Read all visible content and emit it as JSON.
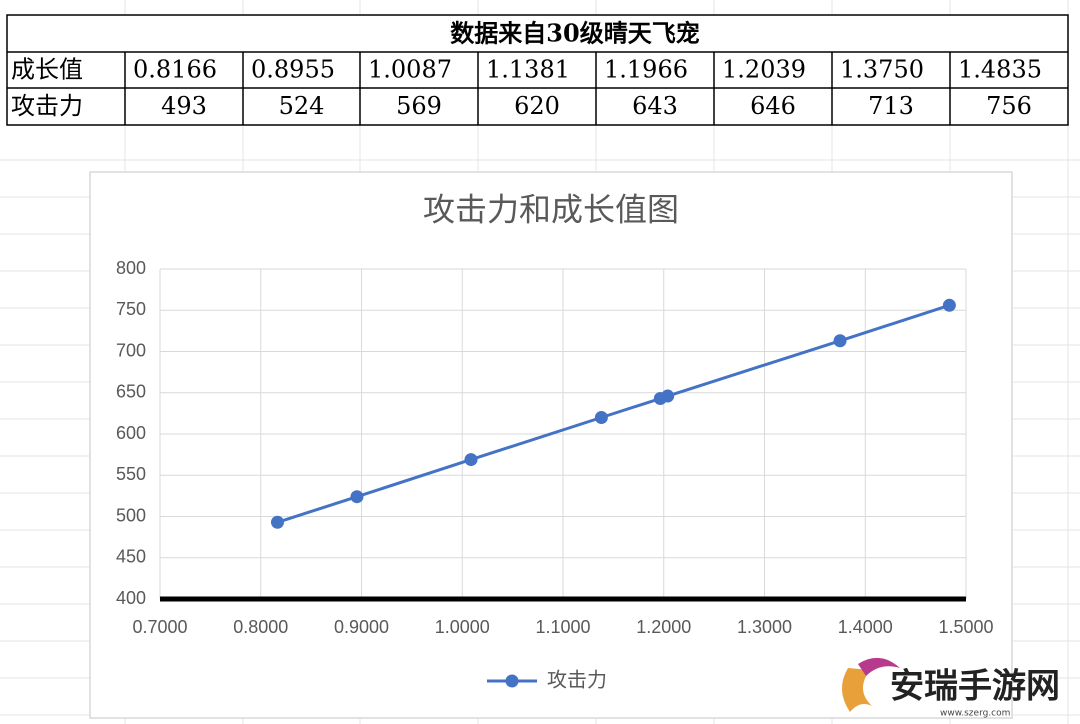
{
  "table": {
    "title": "数据来自30级晴天飞宠",
    "rows": [
      [
        "成长值",
        "0.8166",
        "0.8955",
        "1.0087",
        "1.1381",
        "1.1966",
        "1.2039",
        "1.3750",
        "1.4835"
      ],
      [
        "攻击力",
        "493",
        "524",
        "569",
        "620",
        "643",
        "646",
        "713",
        "756"
      ]
    ]
  },
  "chart_data": {
    "type": "line",
    "title": "攻击力和成长值图",
    "x": [
      0.8166,
      0.8955,
      1.0087,
      1.1381,
      1.1966,
      1.2039,
      1.375,
      1.4835
    ],
    "series": [
      {
        "name": "攻击力",
        "color": "#4472c4",
        "values": [
          493,
          524,
          569,
          620,
          643,
          646,
          713,
          756
        ]
      }
    ],
    "xlim": [
      0.7,
      1.5
    ],
    "xticks": [
      {
        "value": 0.7,
        "label": "0.7000"
      },
      {
        "value": 0.8,
        "label": "0.8000"
      },
      {
        "value": 0.9,
        "label": "0.9000"
      },
      {
        "value": 1.0,
        "label": "1.0000"
      },
      {
        "value": 1.1,
        "label": "1.1000"
      },
      {
        "value": 1.2,
        "label": "1.2000"
      },
      {
        "value": 1.3,
        "label": "1.3000"
      },
      {
        "value": 1.4,
        "label": "1.4000"
      },
      {
        "value": 1.5,
        "label": "1.5000"
      }
    ],
    "ylim": [
      400,
      800
    ],
    "yticks": [
      400,
      450,
      500,
      550,
      600,
      650,
      700,
      750,
      800
    ],
    "grid": true,
    "legend": "bottom"
  },
  "watermark": {
    "name": "安瑞手游网",
    "url": "www.szerg.com"
  }
}
